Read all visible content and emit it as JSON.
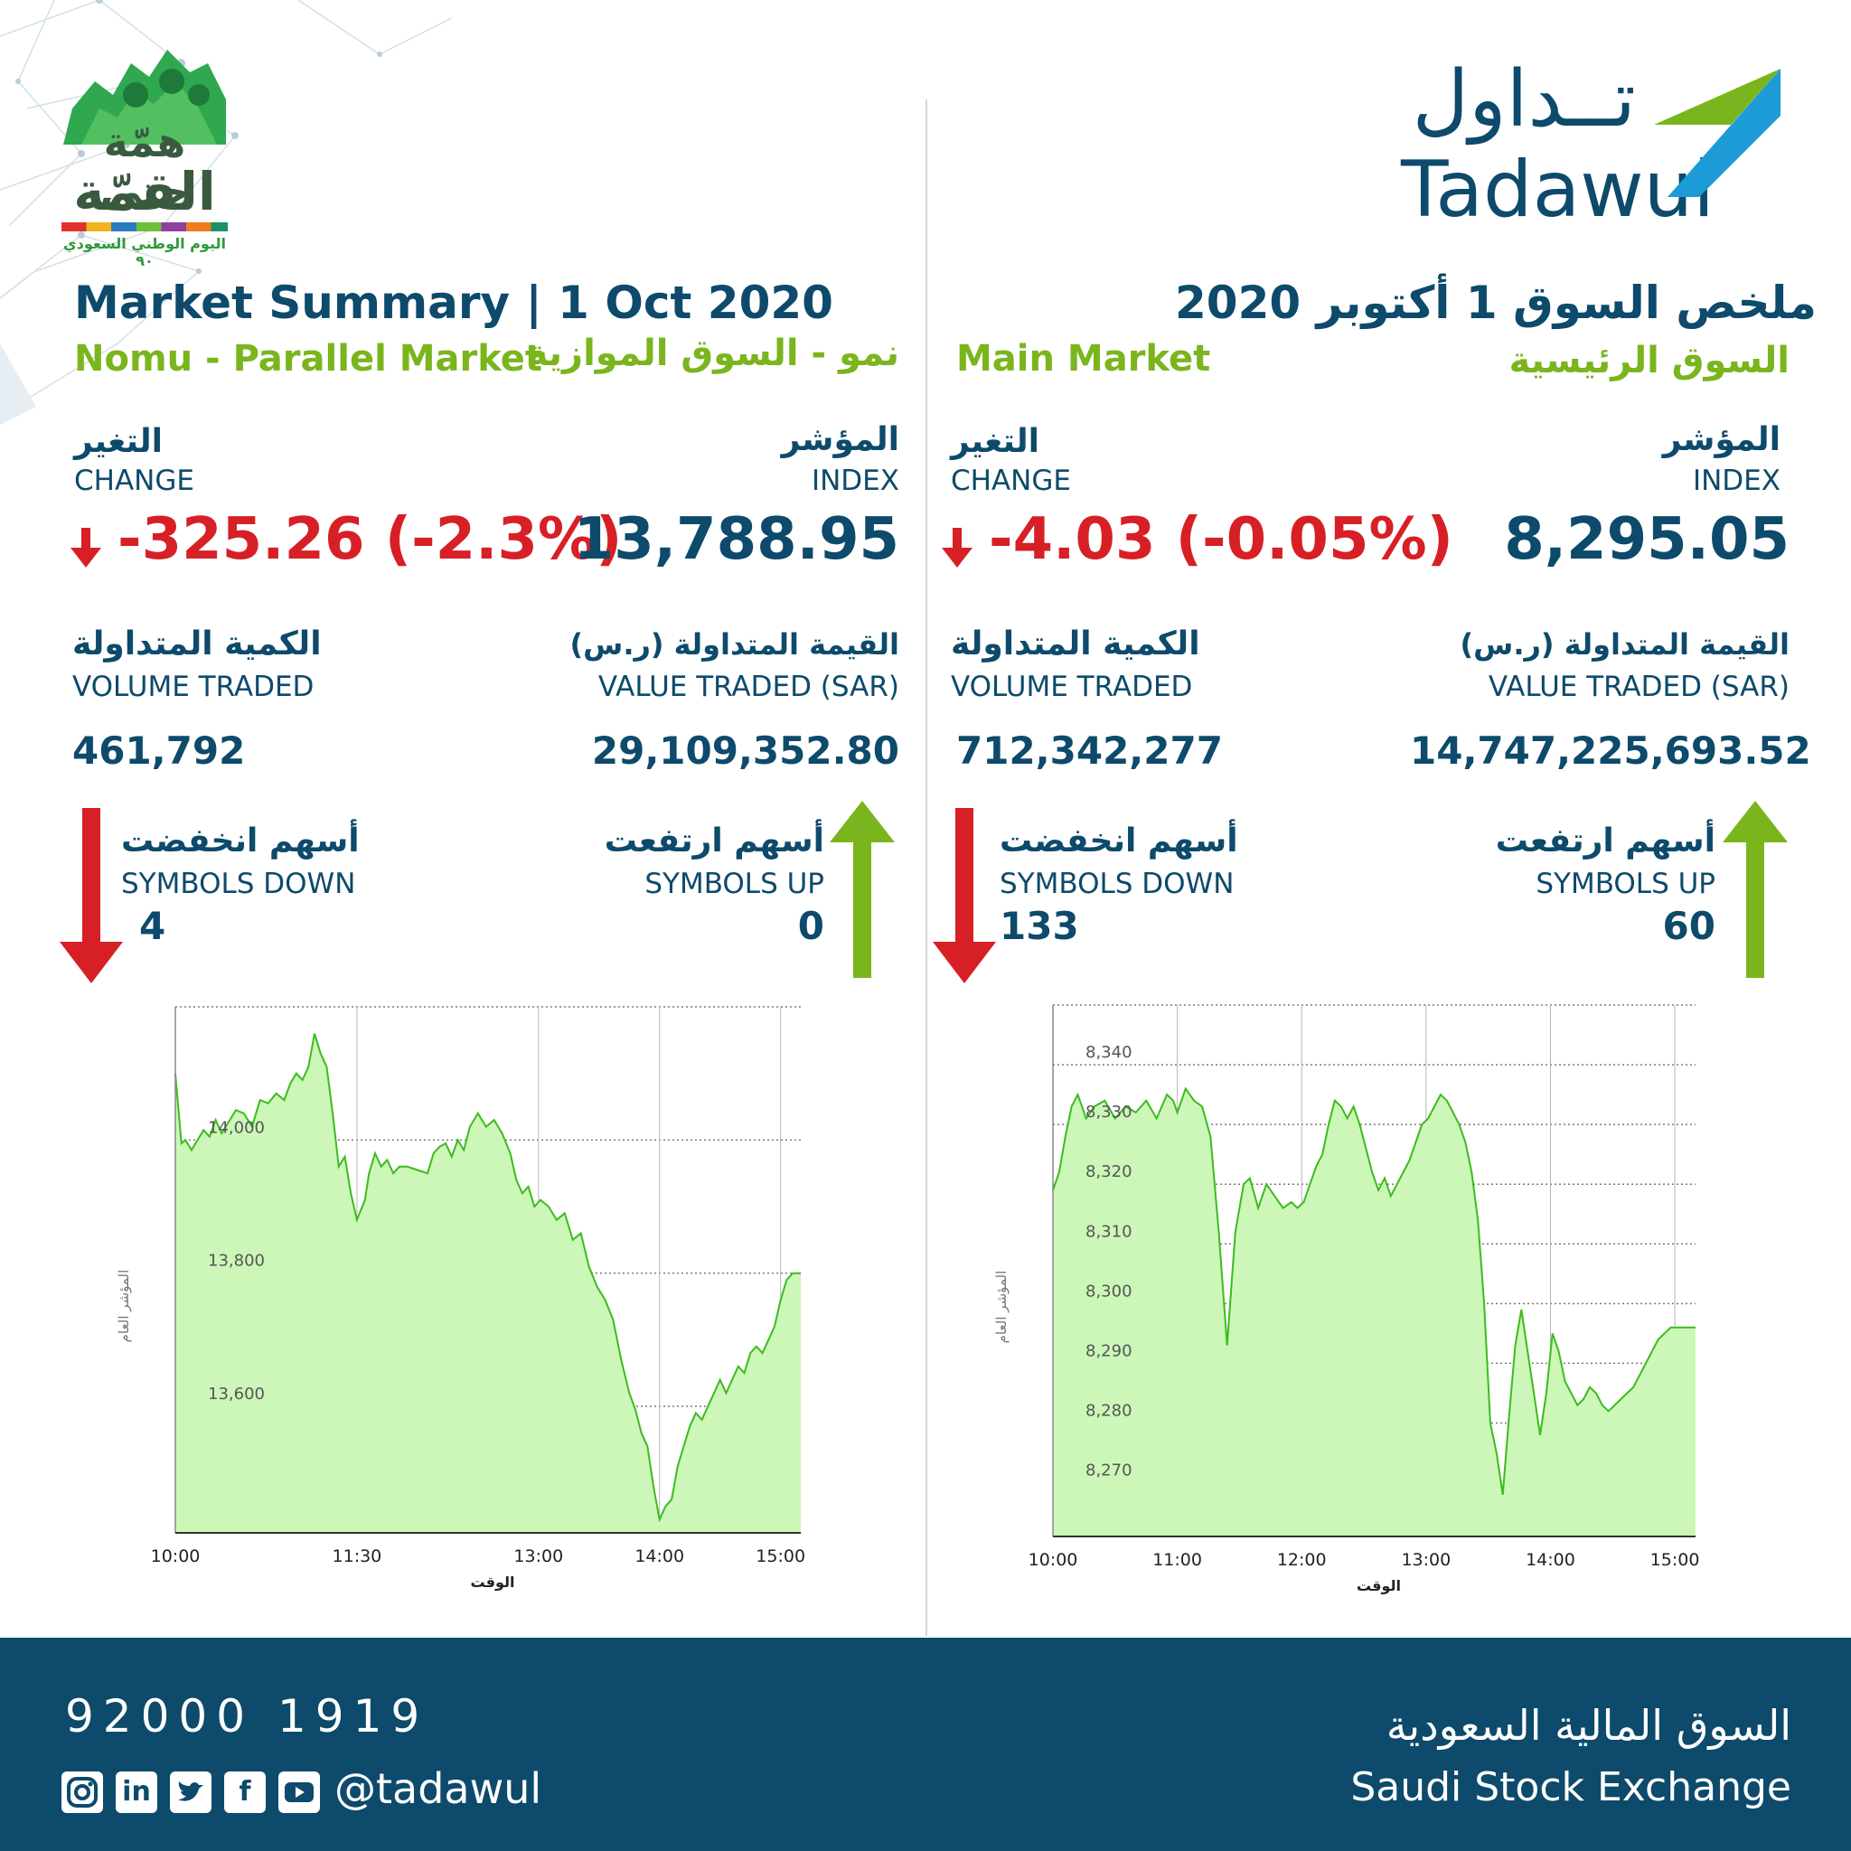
{
  "header": {
    "logo_arabic": "تــداول",
    "logo_latin": "Tadawul",
    "badge_line1": "همّة حتى",
    "badge_line2": "القمّة",
    "badge_caption": "اليوم الوطني السعودي ٩٠"
  },
  "nomu": {
    "title": "Market Summary | 1 Oct 2020",
    "subtitle_en": "Nomu - Parallel Market",
    "subtitle_ar": "نمو - السوق الموازية",
    "change_ar": "التغير",
    "change_en": "CHANGE",
    "change_value": "-325.26 (-2.3%)",
    "index_ar": "المؤشر",
    "index_en": "INDEX",
    "index_value": "13,788.95",
    "volume_ar": "الكمية المتداولة",
    "volume_en": "VOLUME TRADED",
    "volume_value": "461,792",
    "value_ar": "القيمة المتداولة (ر.س)",
    "value_en": "VALUE TRADED (SAR)",
    "value_value": "29,109,352.80",
    "down_ar": "أسهم انخفضت",
    "down_en": "SYMBOLS DOWN",
    "down_value": "4",
    "up_ar": "أسهم ارتفعت",
    "up_en": "SYMBOLS UP",
    "up_value": "0"
  },
  "main": {
    "title": "ملخص السوق 1 أكتوبر 2020",
    "subtitle_en": "Main Market",
    "subtitle_ar": "السوق الرئيسية",
    "change_ar": "التغير",
    "change_en": "CHANGE",
    "change_value": "-4.03 (-0.05%)",
    "index_ar": "المؤشر",
    "index_en": "INDEX",
    "index_value": "8,295.05",
    "volume_ar": "الكمية المتداولة",
    "volume_en": "VOLUME TRADED",
    "volume_value": "712,342,277",
    "value_ar": "القيمة المتداولة (ر.س)",
    "value_en": "VALUE TRADED (SAR)",
    "value_value": "14,747,225,693.52",
    "down_ar": "أسهم انخفضت",
    "down_en": "SYMBOLS DOWN",
    "down_value": "133",
    "up_ar": "أسهم ارتفعت",
    "up_en": "SYMBOLS UP",
    "up_value": "60"
  },
  "footer": {
    "phone": "92000 1919",
    "handle": "@tadawul",
    "exchange_ar": "السوق المالية السعودية",
    "exchange_en": "Saudi Stock Exchange",
    "social_icons": [
      "instagram-icon",
      "linkedin-icon",
      "twitter-icon",
      "facebook-icon",
      "youtube-icon"
    ]
  },
  "colors": {
    "navy": "#0d4a6b",
    "green": "#7ab51d",
    "red": "#d71f26",
    "area_fill": "#ccf7b8",
    "line": "#3dbb1e"
  },
  "chart_data": [
    {
      "type": "area",
      "market": "Nomu",
      "xlabel": "الوقت",
      "ylabel": "المؤشر العام",
      "x_ticks": [
        "10:00",
        "11:30",
        "13:00",
        "14:00",
        "15:00"
      ],
      "x_tick_minutes": [
        0,
        90,
        180,
        240,
        300
      ],
      "x_range_minutes": [
        0,
        310
      ],
      "y_ticks": [
        13600,
        13800,
        14000
      ],
      "y_tick_labels": [
        "13,600",
        "13,800",
        "14,000"
      ],
      "ylim": [
        13410,
        14200
      ],
      "grid": true,
      "x_minutes": [
        0,
        3,
        5,
        8,
        11,
        14,
        17,
        20,
        23,
        26,
        30,
        34,
        38,
        42,
        46,
        50,
        54,
        57,
        60,
        63,
        66,
        69,
        72,
        75,
        78,
        81,
        84,
        87,
        90,
        94,
        96,
        99,
        102,
        105,
        108,
        111,
        115,
        120,
        125,
        128,
        131,
        134,
        137,
        140,
        143,
        146,
        150,
        154,
        158,
        162,
        166,
        169,
        172,
        175,
        178,
        181,
        185,
        189,
        193,
        197,
        201,
        205,
        209,
        213,
        217,
        221,
        225,
        228,
        231,
        234,
        237,
        240,
        243,
        246,
        249,
        252,
        255,
        258,
        261,
        264,
        267,
        270,
        273,
        276,
        279,
        282,
        285,
        288,
        291,
        294,
        297,
        300,
        303,
        306,
        310
      ],
      "values": [
        14100,
        13995,
        14000,
        13985,
        14000,
        14015,
        14005,
        14030,
        14010,
        14025,
        14045,
        14040,
        14020,
        14060,
        14055,
        14070,
        14060,
        14085,
        14100,
        14090,
        14110,
        14160,
        14130,
        14110,
        14040,
        13960,
        13975,
        13920,
        13880,
        13910,
        13950,
        13980,
        13960,
        13970,
        13950,
        13960,
        13960,
        13955,
        13950,
        13980,
        13990,
        13995,
        13975,
        14000,
        13985,
        14020,
        14040,
        14020,
        14030,
        14010,
        13980,
        13940,
        13920,
        13930,
        13900,
        13910,
        13900,
        13880,
        13890,
        13850,
        13860,
        13810,
        13780,
        13760,
        13730,
        13670,
        13620,
        13595,
        13560,
        13540,
        13480,
        13430,
        13450,
        13460,
        13510,
        13540,
        13570,
        13590,
        13580,
        13600,
        13620,
        13640,
        13620,
        13640,
        13660,
        13650,
        13680,
        13690,
        13680,
        13700,
        13720,
        13760,
        13790,
        13800,
        13800
      ]
    },
    {
      "type": "area",
      "market": "Main",
      "xlabel": "الوقت",
      "ylabel": "المؤشر العام",
      "x_ticks": [
        "10:00",
        "11:00",
        "12:00",
        "13:00",
        "14:00",
        "15:00"
      ],
      "x_tick_minutes": [
        0,
        60,
        120,
        180,
        240,
        300
      ],
      "x_range_minutes": [
        0,
        310
      ],
      "y_ticks": [
        8270,
        8280,
        8290,
        8300,
        8310,
        8320,
        8330,
        8340
      ],
      "y_tick_labels": [
        "8,270",
        "8,280",
        "8,290",
        "8,300",
        "8,310",
        "8,320",
        "8,330",
        "8,340"
      ],
      "ylim": [
        8261,
        8350
      ],
      "grid": true,
      "x_minutes": [
        0,
        3,
        6,
        9,
        12,
        16,
        20,
        25,
        30,
        35,
        40,
        45,
        50,
        55,
        58,
        60,
        64,
        68,
        72,
        76,
        80,
        84,
        88,
        92,
        95,
        99,
        103,
        107,
        111,
        115,
        118,
        121,
        124,
        127,
        130,
        133,
        136,
        139,
        142,
        145,
        148,
        151,
        154,
        157,
        160,
        163,
        166,
        169,
        172,
        175,
        178,
        181,
        184,
        187,
        190,
        193,
        196,
        199,
        202,
        205,
        208,
        211,
        214,
        217,
        220,
        223,
        226,
        229,
        232,
        235,
        238,
        241,
        244,
        247,
        250,
        253,
        256,
        259,
        262,
        265,
        268,
        271,
        274,
        277,
        280,
        283,
        286,
        289,
        292,
        295,
        298,
        301,
        305,
        310
      ],
      "values": [
        8319,
        8322,
        8328,
        8333,
        8335,
        8331,
        8333,
        8334,
        8331,
        8333,
        8332,
        8334,
        8331,
        8335,
        8334,
        8332,
        8336,
        8334,
        8333,
        8328,
        8312,
        8293,
        8312,
        8320,
        8321,
        8316,
        8320,
        8318,
        8316,
        8317,
        8316,
        8317,
        8320,
        8323,
        8325,
        8330,
        8334,
        8333,
        8331,
        8333,
        8330,
        8326,
        8322,
        8319,
        8321,
        8318,
        8320,
        8322,
        8324,
        8327,
        8330,
        8331,
        8333,
        8335,
        8334,
        8332,
        8330,
        8327,
        8322,
        8314,
        8300,
        8280,
        8275,
        8268,
        8281,
        8293,
        8299,
        8292,
        8285,
        8278,
        8285,
        8295,
        8292,
        8287,
        8285,
        8283,
        8284,
        8286,
        8285,
        8283,
        8282,
        8283,
        8284,
        8285,
        8286,
        8288,
        8290,
        8292,
        8294,
        8295,
        8296,
        8296,
        8296,
        8296
      ]
    }
  ]
}
